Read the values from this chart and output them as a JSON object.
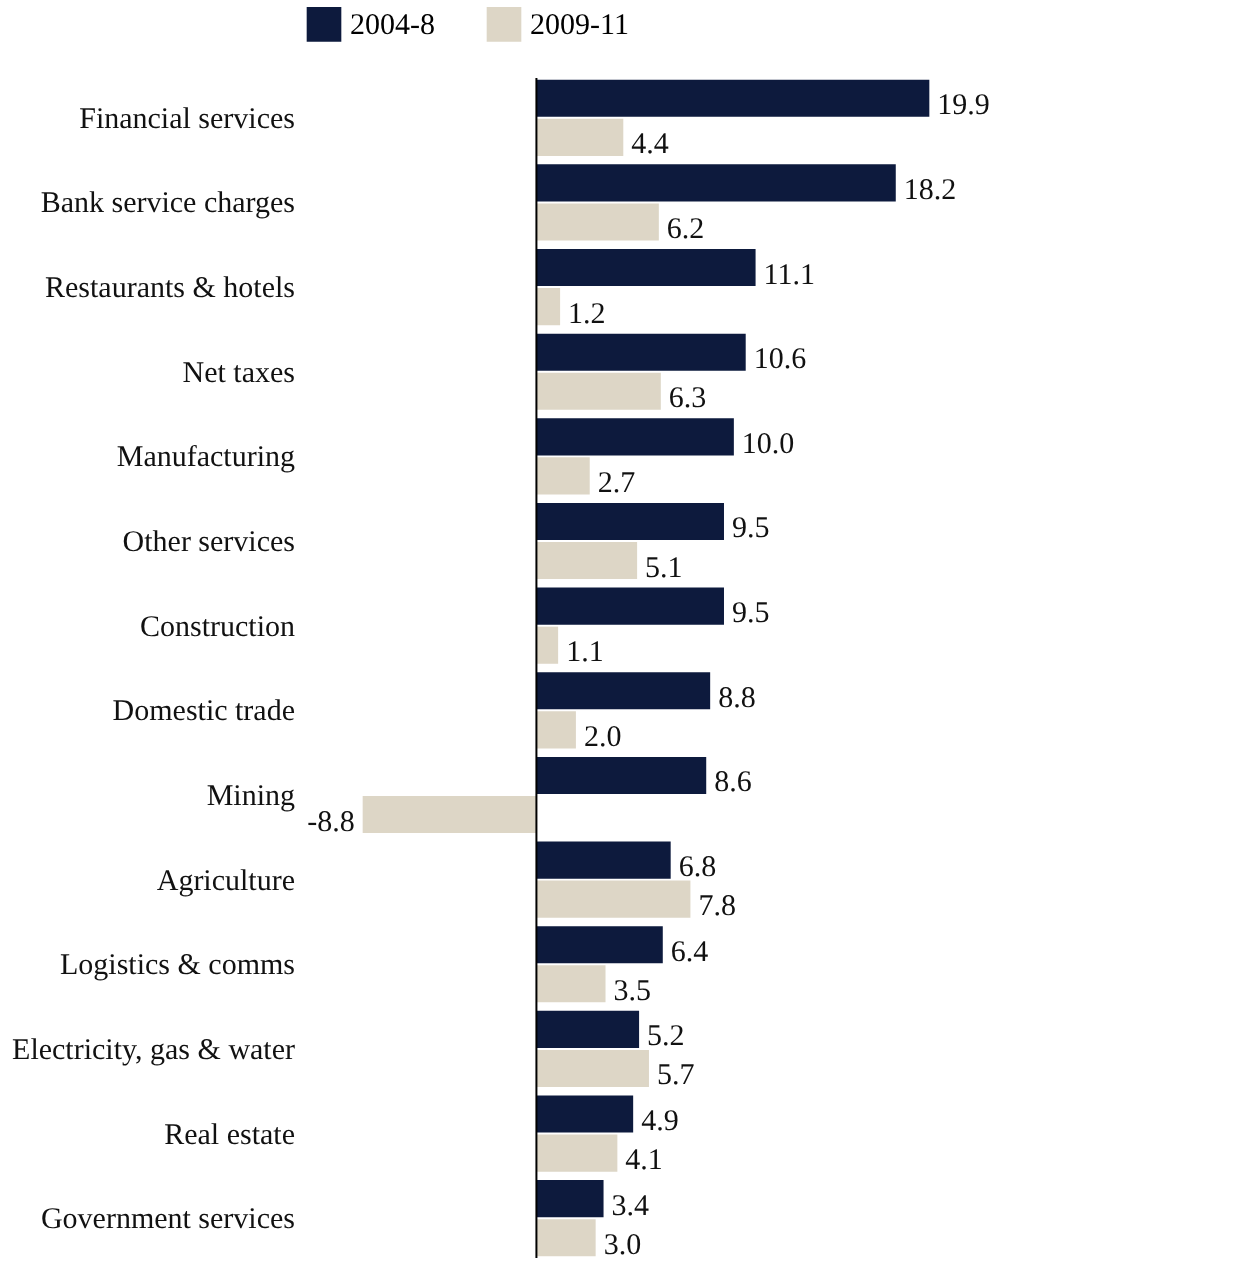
{
  "chart_data": {
    "type": "bar",
    "orientation": "horizontal",
    "categories": [
      "Financial services",
      "Bank service charges",
      "Restaurants & hotels",
      "Net taxes",
      "Manufacturing",
      "Other services",
      "Construction",
      "Domestic trade",
      "Mining",
      "Agriculture",
      "Logistics & comms",
      "Electricity, gas & water",
      "Real estate",
      "Government services"
    ],
    "series": [
      {
        "name": "2004-8",
        "color": "#0d1a3d",
        "values": [
          19.9,
          18.2,
          11.1,
          10.6,
          10.0,
          9.5,
          9.5,
          8.8,
          8.6,
          6.8,
          6.4,
          5.2,
          4.9,
          3.4
        ],
        "value_labels": [
          "19.9",
          "18.2",
          "11.1",
          "10.6",
          "10.0",
          "9.5",
          "9.5",
          "8.8",
          "8.6",
          "6.8",
          "6.4",
          "5.2",
          "4.9",
          "3.4"
        ]
      },
      {
        "name": "2009-11",
        "color": "#ddd6c6",
        "values": [
          4.4,
          6.2,
          1.2,
          6.3,
          2.7,
          5.1,
          1.1,
          2.0,
          -8.8,
          7.8,
          3.5,
          5.7,
          4.1,
          3.0
        ],
        "value_labels": [
          "4.4",
          "6.2",
          "1.2",
          "6.3",
          "2.7",
          "5.1",
          "1.1",
          "2.0",
          "-8.8",
          "7.8",
          "3.5",
          "5.7",
          "4.1",
          "3.0"
        ]
      }
    ],
    "legend": "top",
    "tick_labels": "y"
  }
}
